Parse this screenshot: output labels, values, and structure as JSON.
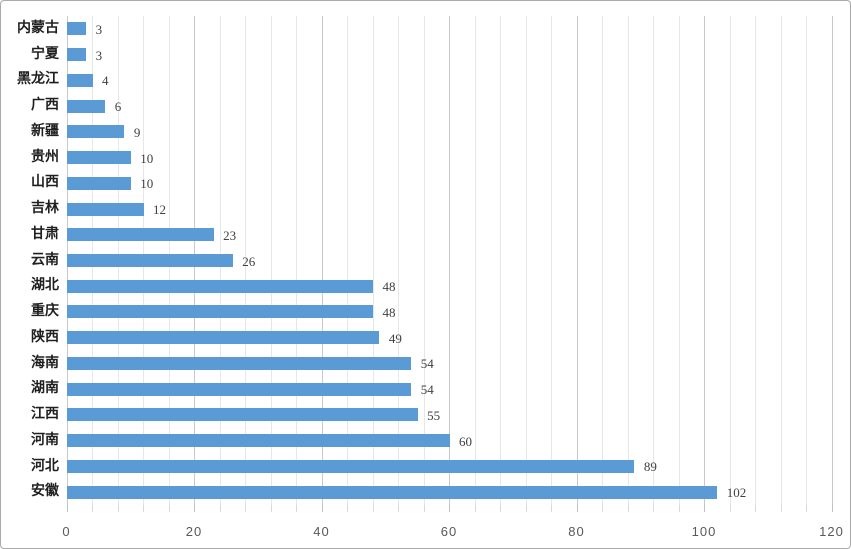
{
  "chart_data": {
    "type": "bar",
    "orientation": "horizontal",
    "title": "",
    "xlabel": "",
    "ylabel": "",
    "categories": [
      "内蒙古",
      "宁夏",
      "黑龙江",
      "广西",
      "新疆",
      "贵州",
      "山西",
      "吉林",
      "甘肃",
      "云南",
      "湖北",
      "重庆",
      "陕西",
      "海南",
      "湖南",
      "江西",
      "河南",
      "河北",
      "安徽"
    ],
    "values": [
      3,
      3,
      4,
      6,
      9,
      10,
      10,
      12,
      23,
      26,
      48,
      48,
      49,
      54,
      54,
      55,
      60,
      89,
      102
    ],
    "data_labels": [
      "3",
      "3",
      "4",
      "6",
      "9",
      "10",
      "10",
      "12",
      "23",
      "26",
      "48",
      "48",
      "49",
      "54",
      "54",
      "55",
      "60",
      "89",
      "102"
    ],
    "xlim": [
      0,
      120
    ],
    "x_tick_labels": [
      "0",
      "20",
      "40",
      "60",
      "80",
      "100",
      "120"
    ],
    "x_major_unit": 20,
    "x_minor_unit": 4,
    "grid": "vertical-major-and-minor",
    "legend": "none",
    "bar_color": "#5B9BD5",
    "colors": {
      "bar": "#5B9BD5",
      "major_gridline": "#c9c9c9",
      "minor_gridline": "#e7e7e7",
      "axis_tick_label": "#595959",
      "data_label": "#404040",
      "category_label": "#1f1f1f"
    }
  }
}
